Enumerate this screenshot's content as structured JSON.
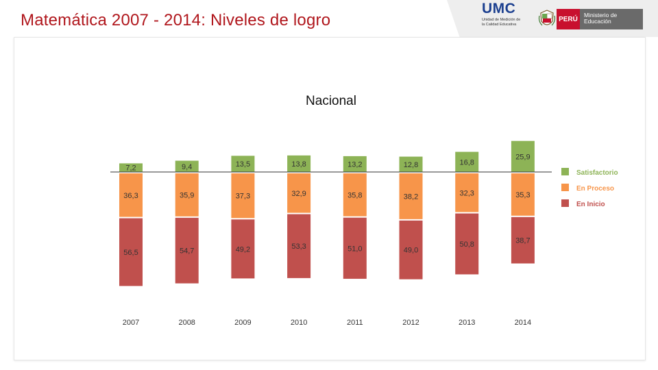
{
  "page": {
    "title": "Matemática 2007 - 2014: Niveles de logro"
  },
  "logos": {
    "umc_title": "UMC",
    "umc_subtitle": "Unidad de Medición de la Calidad Educativa",
    "country": "PERÚ",
    "ministry": "Ministerio de Educación"
  },
  "colors": {
    "title": "#b0161c",
    "satisfactorio": "#8db356",
    "en_proceso": "#f7954a",
    "en_inicio": "#c0504d"
  },
  "chart_data": {
    "type": "bar",
    "stacked": true,
    "title": "Nacional",
    "xlabel": "",
    "ylabel": "",
    "categories": [
      "2007",
      "2008",
      "2009",
      "2010",
      "2011",
      "2012",
      "2013",
      "2014"
    ],
    "baseline_category": "Satisfactorio/En Proceso boundary",
    "series": [
      {
        "name": "Satisfactorio",
        "color": "#8db356",
        "values": [
          7.2,
          9.4,
          13.5,
          13.8,
          13.2,
          12.8,
          16.8,
          25.9
        ],
        "labels": [
          "7,2",
          "9,4",
          "13,5",
          "13,8",
          "13,2",
          "12,8",
          "16,8",
          "25,9"
        ]
      },
      {
        "name": "En Proceso",
        "color": "#f7954a",
        "values": [
          36.3,
          35.9,
          37.3,
          32.9,
          35.8,
          38.2,
          32.3,
          35.3
        ],
        "labels": [
          "36,3",
          "35,9",
          "37,3",
          "32,9",
          "35,8",
          "38,2",
          "32,3",
          "35,3"
        ]
      },
      {
        "name": "En Inicio",
        "color": "#c0504d",
        "values": [
          56.5,
          54.7,
          49.2,
          53.3,
          51.0,
          49.0,
          50.8,
          38.7
        ],
        "labels": [
          "56,5",
          "54,7",
          "49,2",
          "53,3",
          "51,0",
          "49,0",
          "50,8",
          "38,7"
        ]
      }
    ],
    "legend": {
      "position": "right",
      "entries": [
        "Satisfactorio",
        "En Proceso",
        "En Inicio"
      ]
    },
    "grid": false
  }
}
